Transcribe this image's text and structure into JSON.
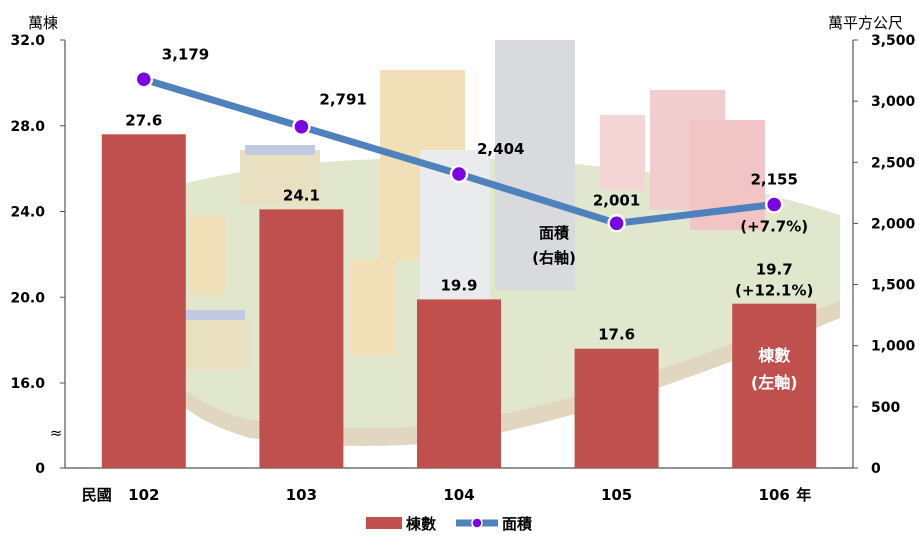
{
  "chart_data": {
    "type": "bar",
    "left_axis_unit": "萬棟",
    "right_axis_unit": "萬平方公尺",
    "left_ticks": [
      "0",
      "16.0",
      "20.0",
      "24.0",
      "28.0",
      "32.0"
    ],
    "left_axis_break": "≈",
    "right_ticks": [
      "0",
      "500",
      "1,000",
      "1,500",
      "2,000",
      "2,500",
      "3,000",
      "3,500"
    ],
    "ylim_left": [
      0,
      32.0
    ],
    "ylim_right": [
      0,
      3500
    ],
    "x_prefix": "民國",
    "x_suffix": "年",
    "categories": [
      "102",
      "103",
      "104",
      "105",
      "106"
    ],
    "series": [
      {
        "name": "棟數",
        "kind": "bar",
        "axis": "left",
        "color": "#C0504D",
        "values": [
          27.6,
          24.1,
          19.9,
          17.6,
          19.7
        ],
        "labels": [
          "27.6",
          "24.1",
          "19.9",
          "17.6",
          "19.7"
        ]
      },
      {
        "name": "面積",
        "kind": "line",
        "axis": "right",
        "line_color": "#4F81BD",
        "marker_color": "#7B00E6",
        "values": [
          3179,
          2791,
          2404,
          2001,
          2155
        ],
        "labels": [
          "3,179",
          "2,791",
          "2,404",
          "2,001",
          "2,155"
        ]
      }
    ],
    "annotations": {
      "bar_change": "(+12.1%)",
      "line_change": "(+7.7%)",
      "line_series_note_1": "面積",
      "line_series_note_2": "(右軸)",
      "bar_series_note_1": "棟數",
      "bar_series_note_2": "(左軸)"
    },
    "legend": {
      "position": "bottom-center",
      "items": [
        "棟數",
        "面積"
      ]
    },
    "background_image": "city-buildings-illustration"
  }
}
